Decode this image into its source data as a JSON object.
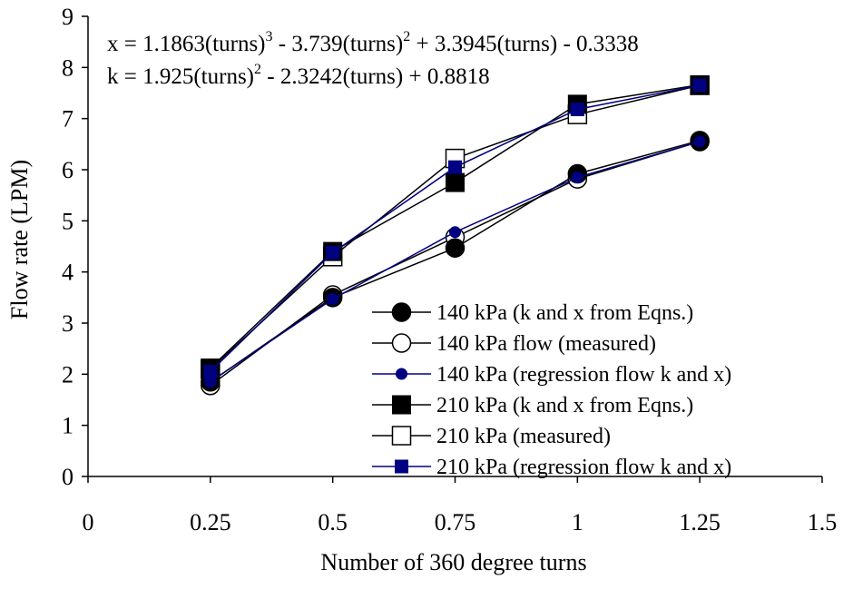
{
  "chart_data": {
    "type": "line",
    "xlabel": "Number of 360 degree turns",
    "ylabel": "Flow rate (LPM)",
    "xlim": [
      0,
      1.5
    ],
    "ylim": [
      0,
      9
    ],
    "xticks": [
      "0",
      "0.25",
      "0.5",
      "0.75",
      "1",
      "1.25",
      "1.5"
    ],
    "yticks": [
      "0",
      "1",
      "2",
      "3",
      "4",
      "5",
      "6",
      "7",
      "8",
      "9"
    ],
    "grid": false,
    "legend_position": "bottom-right",
    "annotations": {
      "eq1": {
        "a": "x = 1.1863(turns)",
        "sup1": "3",
        "b": " - 3.739(turns)",
        "sup2": "2",
        "c": " + 3.3945(turns) - 0.3338"
      },
      "eq2": {
        "a": "k = 1.925(turns)",
        "sup1": "2",
        "b": " - 2.3242(turns) + 0.8818"
      }
    },
    "x": [
      0.25,
      0.5,
      0.75,
      1.0,
      1.25
    ],
    "series": [
      {
        "name": "140 kPa (k and x from Eqns.)",
        "values": [
          1.85,
          3.5,
          4.47,
          5.92,
          6.57
        ],
        "marker": "circle-filled",
        "color": "#000000"
      },
      {
        "name": "140 kPa flow (measured)",
        "values": [
          1.78,
          3.55,
          4.68,
          5.82,
          6.55
        ],
        "marker": "circle-open",
        "color": "#000000"
      },
      {
        "name": "140 kPa (regression flow k and x)",
        "values": [
          1.85,
          3.47,
          4.78,
          5.85,
          6.55
        ],
        "marker": "circle-small",
        "color": "#000080"
      },
      {
        "name": "210 kPa (k and x from Eqns.)",
        "values": [
          2.12,
          4.4,
          5.75,
          7.28,
          7.66
        ],
        "marker": "square-filled",
        "color": "#000000"
      },
      {
        "name": "210 kPa (measured)",
        "values": [
          2.1,
          4.3,
          6.22,
          7.08,
          7.65
        ],
        "marker": "square-open",
        "color": "#000000"
      },
      {
        "name": "210 kPa (regression flow k and x)",
        "values": [
          2.05,
          4.38,
          6.05,
          7.18,
          7.65
        ],
        "marker": "square-small",
        "color": "#000080"
      }
    ]
  }
}
